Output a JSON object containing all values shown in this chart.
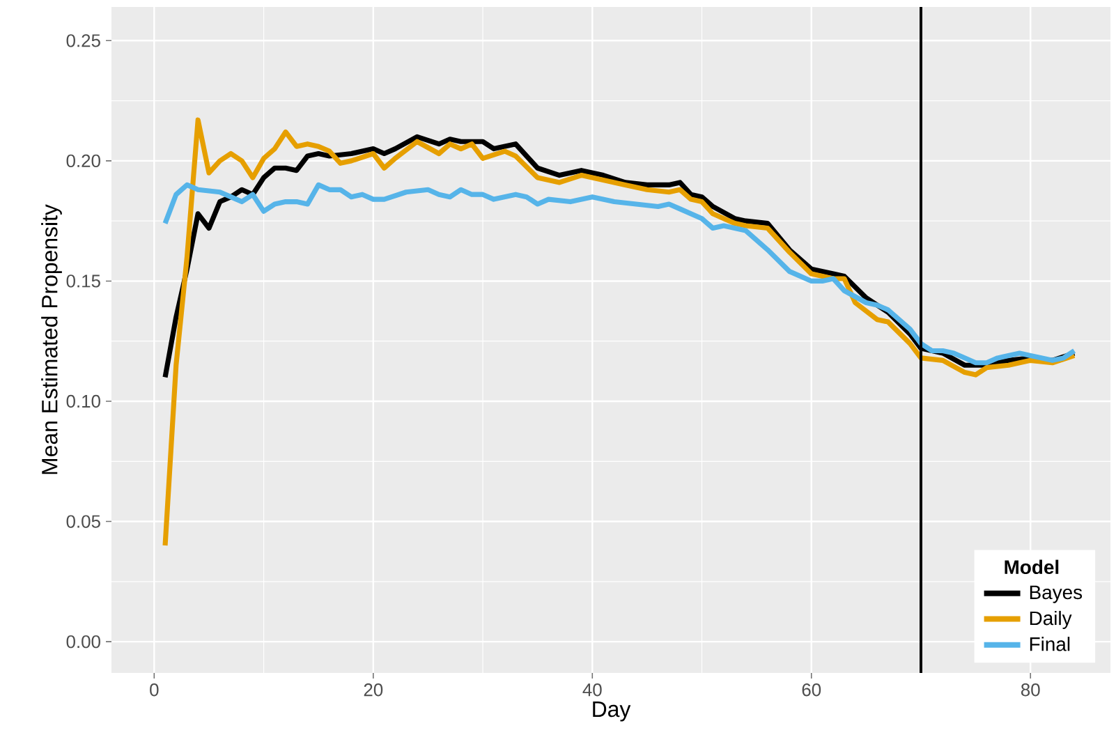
{
  "chart_data": {
    "type": "line",
    "xlabel": "Day",
    "ylabel": "Mean Estimated Propensity",
    "legend_title": "Model",
    "xlim": [
      -3.9,
      87.3
    ],
    "ylim": [
      -0.013,
      0.264
    ],
    "xticks": [
      0,
      20,
      40,
      60,
      80
    ],
    "yticks": [
      {
        "value": 0,
        "label": "0.00"
      },
      {
        "value": 0.05,
        "label": "0.05"
      },
      {
        "value": 0.1,
        "label": "0.10"
      },
      {
        "value": 0.15,
        "label": "0.15"
      },
      {
        "value": 0.2,
        "label": "0.20"
      },
      {
        "value": 0.25,
        "label": "0.25"
      }
    ],
    "grid": true,
    "legend": "bottom right",
    "marker": "none",
    "line_style": "solid",
    "ref_lines": [
      {
        "axis": "x",
        "value": 70,
        "color": "#000000"
      }
    ],
    "series": [
      {
        "name": "Bayes",
        "color": "#000000",
        "x": [
          1,
          2,
          3,
          4,
          5,
          6,
          7,
          8,
          9,
          10,
          11,
          12,
          13,
          14,
          15,
          16,
          18,
          20,
          21,
          22,
          24,
          26,
          27,
          28,
          30,
          31,
          33,
          35,
          37,
          39,
          41,
          43,
          45,
          47,
          48,
          49,
          50,
          51,
          53,
          54,
          56,
          58,
          60,
          62,
          63,
          65,
          67,
          69,
          70,
          72,
          74,
          76,
          78,
          80,
          82,
          84
        ],
        "values": [
          0.11,
          0.135,
          0.155,
          0.178,
          0.172,
          0.183,
          0.185,
          0.188,
          0.186,
          0.193,
          0.197,
          0.197,
          0.196,
          0.202,
          0.203,
          0.202,
          0.203,
          0.205,
          0.203,
          0.205,
          0.21,
          0.207,
          0.209,
          0.208,
          0.208,
          0.205,
          0.207,
          0.197,
          0.194,
          0.196,
          0.194,
          0.191,
          0.19,
          0.19,
          0.191,
          0.186,
          0.185,
          0.181,
          0.176,
          0.175,
          0.174,
          0.163,
          0.155,
          0.153,
          0.152,
          0.143,
          0.137,
          0.128,
          0.122,
          0.12,
          0.115,
          0.115,
          0.117,
          0.118,
          0.117,
          0.12
        ]
      },
      {
        "name": "Daily",
        "color": "#e69f00",
        "x": [
          1,
          2,
          3,
          4,
          5,
          6,
          7,
          8,
          9,
          10,
          11,
          12,
          13,
          14,
          15,
          16,
          17,
          18,
          20,
          21,
          22,
          24,
          26,
          27,
          28,
          29,
          30,
          32,
          33,
          35,
          37,
          39,
          41,
          43,
          45,
          47,
          48,
          49,
          50,
          51,
          53,
          54,
          56,
          58,
          60,
          62,
          63,
          64,
          66,
          67,
          69,
          70,
          72,
          74,
          75,
          76,
          78,
          80,
          82,
          84
        ],
        "values": [
          0.04,
          0.115,
          0.16,
          0.217,
          0.195,
          0.2,
          0.203,
          0.2,
          0.193,
          0.201,
          0.205,
          0.212,
          0.206,
          0.207,
          0.206,
          0.204,
          0.199,
          0.2,
          0.203,
          0.197,
          0.201,
          0.208,
          0.203,
          0.207,
          0.205,
          0.207,
          0.201,
          0.204,
          0.202,
          0.193,
          0.191,
          0.194,
          0.192,
          0.19,
          0.188,
          0.187,
          0.188,
          0.184,
          0.183,
          0.178,
          0.174,
          0.173,
          0.172,
          0.162,
          0.153,
          0.151,
          0.151,
          0.141,
          0.134,
          0.133,
          0.124,
          0.118,
          0.117,
          0.112,
          0.111,
          0.114,
          0.115,
          0.117,
          0.116,
          0.119
        ]
      },
      {
        "name": "Final",
        "color": "#56b4e9",
        "x": [
          1,
          2,
          3,
          4,
          6,
          7,
          8,
          9,
          10,
          11,
          12,
          13,
          14,
          15,
          16,
          17,
          18,
          19,
          20,
          21,
          23,
          25,
          26,
          27,
          28,
          29,
          30,
          31,
          33,
          34,
          35,
          36,
          38,
          40,
          42,
          44,
          46,
          47,
          48,
          50,
          51,
          52,
          54,
          56,
          58,
          60,
          61,
          62,
          63,
          65,
          66,
          67,
          69,
          70,
          71,
          72,
          73,
          75,
          76,
          77,
          79,
          80,
          82,
          83,
          84
        ],
        "values": [
          0.174,
          0.186,
          0.19,
          0.188,
          0.187,
          0.185,
          0.183,
          0.186,
          0.179,
          0.182,
          0.183,
          0.183,
          0.182,
          0.19,
          0.188,
          0.188,
          0.185,
          0.186,
          0.184,
          0.184,
          0.187,
          0.188,
          0.186,
          0.185,
          0.188,
          0.186,
          0.186,
          0.184,
          0.186,
          0.185,
          0.182,
          0.184,
          0.183,
          0.185,
          0.183,
          0.182,
          0.181,
          0.182,
          0.18,
          0.176,
          0.172,
          0.173,
          0.171,
          0.163,
          0.154,
          0.15,
          0.15,
          0.151,
          0.146,
          0.141,
          0.14,
          0.138,
          0.13,
          0.124,
          0.121,
          0.121,
          0.12,
          0.116,
          0.116,
          0.118,
          0.12,
          0.119,
          0.117,
          0.118,
          0.121
        ]
      }
    ]
  }
}
